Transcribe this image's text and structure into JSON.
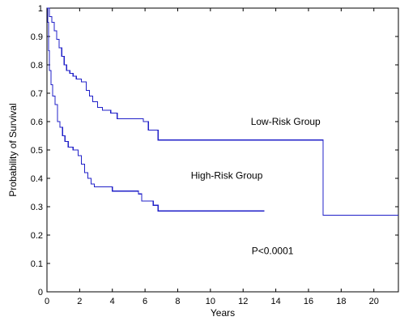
{
  "chart_data": {
    "type": "line",
    "subtype": "kaplan-meier step",
    "title": "",
    "xlabel": "Years",
    "ylabel": "Probability of Survival",
    "xlim": [
      0,
      21.5
    ],
    "ylim": [
      0,
      1
    ],
    "xticks": [
      0,
      2,
      4,
      6,
      8,
      10,
      12,
      14,
      16,
      18,
      20
    ],
    "yticks": [
      0,
      0.1,
      0.2,
      0.3,
      0.4,
      0.5,
      0.6,
      0.7,
      0.8,
      0.9,
      1
    ],
    "grid": false,
    "line_color": "#2020c8",
    "series": [
      {
        "name": "Low-Risk Group",
        "x": [
          0,
          0.15,
          0.3,
          0.45,
          0.6,
          0.75,
          0.9,
          1.05,
          1.2,
          1.4,
          1.6,
          1.8,
          2.1,
          2.4,
          2.6,
          2.8,
          3.1,
          3.4,
          3.9,
          4.3,
          5.9,
          6.2,
          6.8,
          16.9,
          21.5
        ],
        "y": [
          1.0,
          0.97,
          0.95,
          0.92,
          0.89,
          0.86,
          0.83,
          0.8,
          0.78,
          0.77,
          0.76,
          0.75,
          0.74,
          0.71,
          0.69,
          0.67,
          0.65,
          0.64,
          0.63,
          0.61,
          0.6,
          0.57,
          0.535,
          0.27,
          0.27
        ]
      },
      {
        "name": "High-Risk Group",
        "x": [
          0,
          0.05,
          0.1,
          0.15,
          0.25,
          0.35,
          0.5,
          0.65,
          0.8,
          0.95,
          1.1,
          1.3,
          1.6,
          1.9,
          2.1,
          2.3,
          2.5,
          2.7,
          2.9,
          3.3,
          4.0,
          4.3,
          5.6,
          5.8,
          6.5,
          6.8,
          13.3
        ],
        "y": [
          1.0,
          0.95,
          0.85,
          0.78,
          0.73,
          0.69,
          0.66,
          0.6,
          0.58,
          0.55,
          0.53,
          0.51,
          0.5,
          0.48,
          0.45,
          0.42,
          0.4,
          0.38,
          0.37,
          0.37,
          0.355,
          0.355,
          0.345,
          0.32,
          0.305,
          0.285,
          0.285
        ]
      }
    ],
    "annotations": [
      {
        "text": "Low-Risk Group",
        "x": 14.6,
        "y": 0.6
      },
      {
        "text": "High-Risk Group",
        "x": 11.0,
        "y": 0.41
      },
      {
        "text": "P<0.0001",
        "x": 13.8,
        "y": 0.145
      }
    ]
  }
}
